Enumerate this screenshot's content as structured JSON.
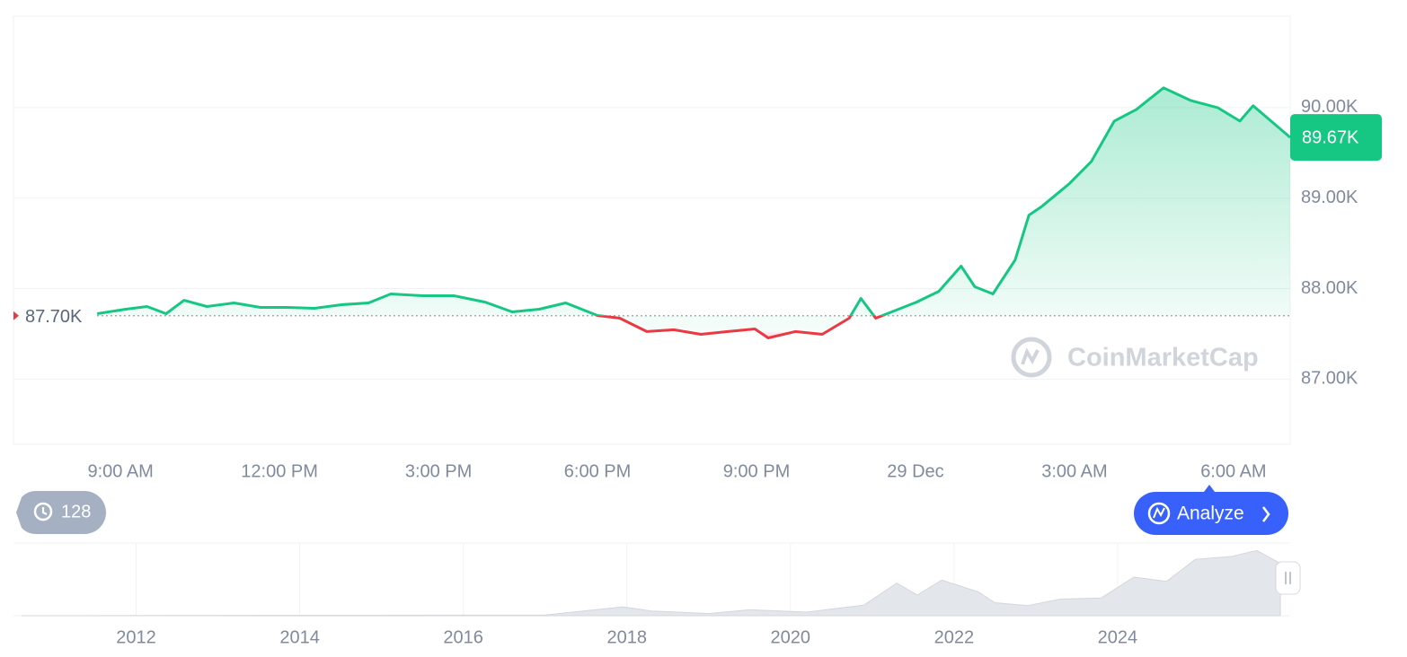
{
  "chart_data": [
    {
      "type": "line",
      "x": [
        8.56,
        9.1,
        9.5,
        9.86,
        10.2,
        10.63,
        11.14,
        11.64,
        12.15,
        12.66,
        13.17,
        13.68,
        14.1,
        14.7,
        15.29,
        15.88,
        16.39,
        16.9,
        17.4,
        18.0,
        18.42,
        18.93,
        19.44,
        19.95,
        20.46,
        20.97,
        21.22,
        21.73,
        22.24,
        22.75,
        22.97,
        23.25,
        23.68,
        24.02,
        24.44,
        24.86,
        25.12,
        25.46,
        25.88,
        26.14,
        26.39,
        26.9,
        27.32,
        27.75,
        28.17,
        28.68,
        29.19,
        29.7,
        30.12,
        30.37,
        31.07
      ],
      "values": [
        87723,
        87772,
        87802,
        87723,
        87871,
        87802,
        87842,
        87792,
        87792,
        87782,
        87822,
        87842,
        87941,
        87921,
        87921,
        87851,
        87743,
        87772,
        87842,
        87703,
        87673,
        87525,
        87545,
        87495,
        87525,
        87554,
        87455,
        87525,
        87495,
        87673,
        87891,
        87673,
        87772,
        87851,
        87970,
        88248,
        88020,
        87941,
        88317,
        88812,
        88911,
        89158,
        89406,
        89851,
        89980,
        90218,
        90079,
        90000,
        89851,
        90020,
        89670
      ],
      "up_color": "#16c784",
      "down_color": "#ea3943",
      "baseline": {
        "value": 87700,
        "label": "87.70K"
      },
      "last_price": {
        "value": 89670,
        "label": "89.67K"
      },
      "xlim": [
        6.98,
        31.07
      ],
      "xticks": [
        {
          "value": 9,
          "label": "9:00 AM"
        },
        {
          "value": 12,
          "label": "12:00 PM"
        },
        {
          "value": 15,
          "label": "3:00 PM"
        },
        {
          "value": 18,
          "label": "6:00 PM"
        },
        {
          "value": 21,
          "label": "9:00 PM"
        },
        {
          "value": 24,
          "label": "29 Dec"
        },
        {
          "value": 27,
          "label": "3:00 AM"
        },
        {
          "value": 30,
          "label": "6:00 AM"
        }
      ],
      "ylim": [
        86280,
        91010
      ],
      "yticks": [
        {
          "value": 87000,
          "label": "87.00K"
        },
        {
          "value": 88000,
          "label": "88.00K"
        },
        {
          "value": 89000,
          "label": "89.00K"
        },
        {
          "value": 90000,
          "label": "90.00K"
        }
      ],
      "grid": true
    },
    {
      "type": "area",
      "x": [
        2010.6,
        2013,
        2017.0,
        2017.95,
        2018.3,
        2019.0,
        2019.5,
        2020.2,
        2020.9,
        2021.3,
        2021.55,
        2021.85,
        2022.3,
        2022.5,
        2022.9,
        2023.3,
        2023.8,
        2024.2,
        2024.6,
        2024.95,
        2025.4,
        2025.7,
        2025.99
      ],
      "values": [
        0,
        500,
        1000,
        15000,
        8000,
        3700,
        10000,
        6000,
        18000,
        55000,
        35000,
        60000,
        40000,
        22000,
        17000,
        28000,
        30000,
        65000,
        58000,
        95000,
        100000,
        110000,
        88000
      ],
      "color": "#e3e6eb",
      "xlim": [
        2010.5,
        2026.11
      ],
      "xticks": [
        2012,
        2014,
        2016,
        2018,
        2020,
        2022,
        2024
      ],
      "ylim": [
        0,
        115000
      ]
    }
  ],
  "ui": {
    "history_count": 128,
    "analyze_button": "Analyze",
    "watermark": "CoinMarketCap"
  }
}
